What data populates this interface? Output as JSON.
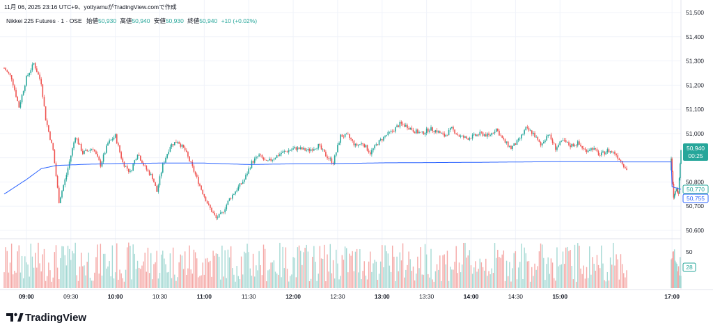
{
  "header": {
    "snapshot_line": "11月 06, 2025 23:16 UTC+9、yottyamuがTradingView.comで作成",
    "symbol": "Nikkei 225 Futures · 1 · OSE",
    "open_label": "始値",
    "open_value": "50,930",
    "high_label": "高値",
    "high_value": "50,940",
    "low_label": "安値",
    "low_value": "50,930",
    "close_label": "終値",
    "close_value": "50,940",
    "change": "+10 (+0.02%)"
  },
  "price_scale": {
    "ticks": [
      "51,500",
      "51,400",
      "51,300",
      "51,200",
      "51,100",
      "51,000",
      "50,900",
      "50,800",
      "50,700",
      "50,600"
    ],
    "last_price": "50,940",
    "countdown": "00:25",
    "vwap_tag": "50,770",
    "vwap_tag2": "50,755"
  },
  "volume_scale": {
    "tick": "50",
    "last_volume": "28"
  },
  "time_axis": [
    "09:00",
    "09:30",
    "10:00",
    "10:30",
    "11:00",
    "11:30",
    "12:00",
    "12:30",
    "13:00",
    "13:30",
    "14:00",
    "14:30",
    "15:00",
    "17:00"
  ],
  "logo": {
    "text": "TradingView"
  },
  "colors": {
    "up": "#26a69a",
    "down": "#ef5350",
    "vwap": "#2962ff",
    "grid": "#f0f3fa"
  },
  "chart_data": {
    "type": "candlestick",
    "interval": "1 minute",
    "y_range": [
      50560,
      51500
    ],
    "price_keypoints": [
      [
        "08:45",
        51270
      ],
      [
        "08:50",
        51230
      ],
      [
        "08:55",
        51110
      ],
      [
        "09:00",
        51230
      ],
      [
        "09:05",
        51290
      ],
      [
        "09:10",
        51210
      ],
      [
        "09:13",
        51060
      ],
      [
        "09:18",
        50930
      ],
      [
        "09:22",
        50720
      ],
      [
        "09:27",
        50830
      ],
      [
        "09:33",
        50990
      ],
      [
        "09:38",
        50920
      ],
      [
        "09:45",
        50940
      ],
      [
        "09:50",
        50870
      ],
      [
        "09:55",
        50960
      ],
      [
        "10:00",
        50990
      ],
      [
        "10:05",
        50880
      ],
      [
        "10:10",
        50840
      ],
      [
        "10:15",
        50920
      ],
      [
        "10:20",
        50860
      ],
      [
        "10:25",
        50820
      ],
      [
        "10:28",
        50760
      ],
      [
        "10:32",
        50870
      ],
      [
        "10:37",
        50950
      ],
      [
        "10:42",
        50970
      ],
      [
        "10:47",
        50930
      ],
      [
        "10:52",
        50860
      ],
      [
        "10:58",
        50770
      ],
      [
        "11:03",
        50700
      ],
      [
        "11:08",
        50650
      ],
      [
        "11:12",
        50670
      ],
      [
        "11:17",
        50730
      ],
      [
        "11:22",
        50770
      ],
      [
        "11:27",
        50810
      ],
      [
        "11:32",
        50880
      ],
      [
        "11:37",
        50910
      ],
      [
        "11:42",
        50880
      ],
      [
        "11:47",
        50900
      ],
      [
        "11:52",
        50920
      ],
      [
        "11:57",
        50930
      ],
      [
        "12:02",
        50940
      ],
      [
        "12:10",
        50930
      ],
      [
        "12:17",
        50950
      ],
      [
        "12:22",
        50910
      ],
      [
        "12:27",
        50880
      ],
      [
        "12:32",
        50990
      ],
      [
        "12:37",
        50990
      ],
      [
        "12:42",
        50950
      ],
      [
        "12:47",
        50960
      ],
      [
        "12:52",
        50920
      ],
      [
        "12:57",
        50960
      ],
      [
        "13:02",
        50990
      ],
      [
        "13:07",
        51010
      ],
      [
        "13:12",
        51040
      ],
      [
        "13:17",
        51030
      ],
      [
        "13:22",
        51010
      ],
      [
        "13:27",
        51000
      ],
      [
        "13:32",
        51020
      ],
      [
        "13:37",
        51010
      ],
      [
        "13:42",
        50990
      ],
      [
        "13:47",
        51020
      ],
      [
        "13:52",
        50990
      ],
      [
        "13:57",
        50980
      ],
      [
        "14:02",
        50990
      ],
      [
        "14:07",
        51000
      ],
      [
        "14:12",
        50990
      ],
      [
        "14:17",
        51020
      ],
      [
        "14:22",
        50970
      ],
      [
        "14:27",
        50940
      ],
      [
        "14:32",
        50970
      ],
      [
        "14:37",
        51020
      ],
      [
        "14:42",
        51000
      ],
      [
        "14:47",
        50950
      ],
      [
        "14:52",
        51000
      ],
      [
        "14:57",
        50940
      ],
      [
        "15:02",
        50970
      ],
      [
        "15:07",
        50950
      ],
      [
        "15:12",
        50960
      ],
      [
        "15:17",
        50930
      ],
      [
        "15:22",
        50940
      ],
      [
        "15:27",
        50910
      ],
      [
        "15:32",
        50930
      ],
      [
        "15:37",
        50920
      ],
      [
        "15:42",
        50880
      ],
      [
        "15:45",
        50850
      ],
      [
        "15:48",
        50810
      ],
      [
        "15:50",
        50830
      ],
      [
        "15:53",
        50950
      ],
      [
        "16:59",
        50900
      ],
      [
        "17:02",
        50730
      ],
      [
        "17:05",
        50770
      ],
      [
        "17:08",
        50760
      ],
      [
        "17:11",
        50940
      ]
    ],
    "vwap_keypoints": [
      [
        "08:45",
        50750
      ],
      [
        "09:00",
        50810
      ],
      [
        "09:10",
        50855
      ],
      [
        "09:20",
        50868
      ],
      [
        "09:40",
        50873
      ],
      [
        "10:00",
        50876
      ],
      [
        "10:30",
        50878
      ],
      [
        "11:00",
        50878
      ],
      [
        "11:30",
        50872
      ],
      [
        "12:00",
        50875
      ],
      [
        "12:30",
        50876
      ],
      [
        "13:00",
        50879
      ],
      [
        "14:00",
        50881
      ],
      [
        "15:00",
        50884
      ],
      [
        "15:45",
        50883
      ],
      [
        "16:59",
        50883
      ],
      [
        "17:00",
        50780
      ],
      [
        "17:11",
        50770
      ]
    ],
    "volume_max": 60,
    "series": [
      {
        "name": "Nikkei 225 Futures",
        "last": 50940
      },
      {
        "name": "",
        "last": 50770
      }
    ]
  }
}
